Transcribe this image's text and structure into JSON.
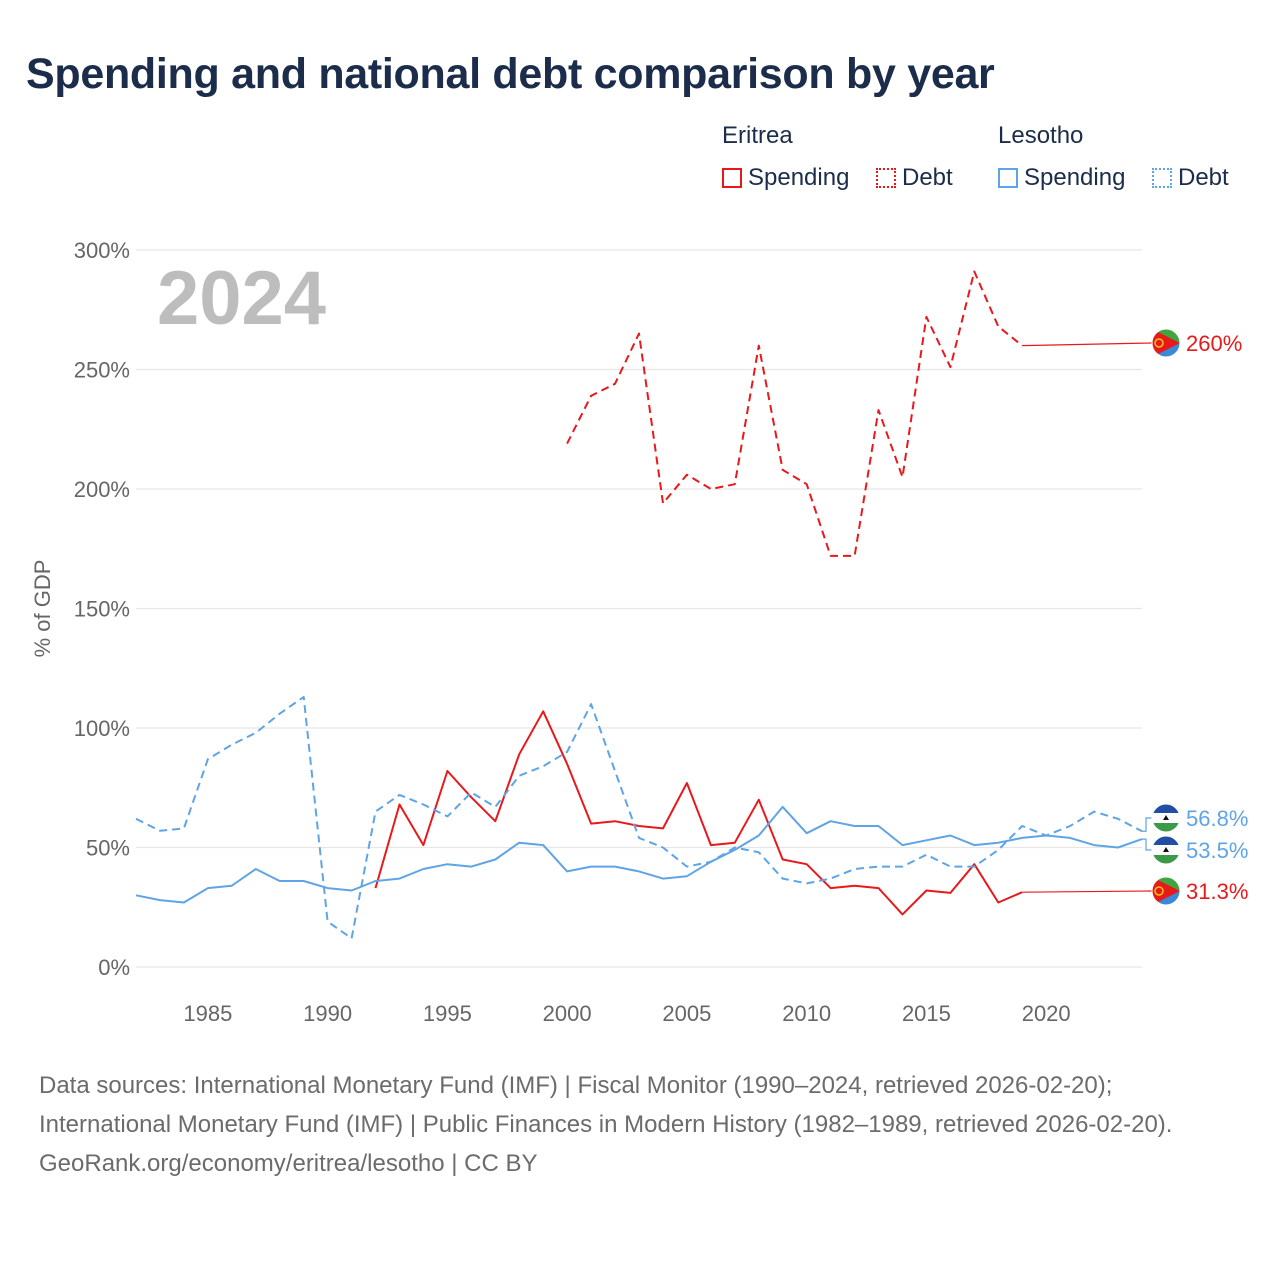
{
  "title": "Spending and national debt comparison by year",
  "year_watermark": "2024",
  "legend": {
    "groups": [
      {
        "title": "Eritrea",
        "spending_label": "Spending",
        "debt_label": "Debt"
      },
      {
        "title": "Lesotho",
        "spending_label": "Spending",
        "debt_label": "Debt"
      }
    ]
  },
  "colors": {
    "eritrea": "#e8191b",
    "lesotho": "#5ea4e6",
    "grid": "#e6e6e6",
    "axis_text": "#666666"
  },
  "chart_data": {
    "type": "line",
    "title": "Spending and national debt comparison by year",
    "xlabel": "",
    "ylabel": "% of GDP",
    "xlim": [
      1982,
      2024
    ],
    "ylim": [
      0,
      300
    ],
    "x_ticks": [
      1985,
      1990,
      1995,
      2000,
      2005,
      2010,
      2015,
      2020
    ],
    "y_ticks": [
      0,
      50,
      100,
      150,
      200,
      250,
      300
    ],
    "y_tick_labels": [
      "0%",
      "50%",
      "100%",
      "150%",
      "200%",
      "250%",
      "300%"
    ],
    "grid": true,
    "series": [
      {
        "name": "Eritrea Spending",
        "country": "Eritrea",
        "metric": "Spending",
        "color": "#e8191b",
        "dashed": false,
        "x": [
          1992,
          1993,
          1994,
          1995,
          1996,
          1997,
          1998,
          1999,
          2000,
          2001,
          2002,
          2003,
          2004,
          2005,
          2006,
          2007,
          2008,
          2009,
          2010,
          2011,
          2012,
          2013,
          2014,
          2015,
          2016,
          2017,
          2018,
          2019
        ],
        "values": [
          33,
          68,
          51,
          82,
          71,
          61,
          89,
          107,
          85,
          60,
          61,
          59,
          58,
          77,
          51,
          52,
          70,
          45,
          43,
          33,
          34,
          33,
          22,
          32,
          31,
          43,
          27,
          31.3
        ],
        "end_label": "31.3%"
      },
      {
        "name": "Eritrea Debt",
        "country": "Eritrea",
        "metric": "Debt",
        "color": "#e8191b",
        "dashed": true,
        "x": [
          2000,
          2001,
          2002,
          2003,
          2004,
          2005,
          2006,
          2007,
          2008,
          2009,
          2010,
          2011,
          2012,
          2013,
          2014,
          2015,
          2016,
          2017,
          2018,
          2019
        ],
        "values": [
          219,
          239,
          244,
          265,
          194,
          206,
          200,
          202,
          260,
          208,
          202,
          172,
          172,
          233,
          205,
          272,
          251,
          291,
          268,
          260
        ],
        "end_label": "260%"
      },
      {
        "name": "Lesotho Spending",
        "country": "Lesotho",
        "metric": "Spending",
        "color": "#5ea4e6",
        "dashed": false,
        "x": [
          1982,
          1983,
          1984,
          1985,
          1986,
          1987,
          1988,
          1989,
          1990,
          1991,
          1992,
          1993,
          1994,
          1995,
          1996,
          1997,
          1998,
          1999,
          2000,
          2001,
          2002,
          2003,
          2004,
          2005,
          2006,
          2007,
          2008,
          2009,
          2010,
          2011,
          2012,
          2013,
          2014,
          2015,
          2016,
          2017,
          2018,
          2019,
          2020,
          2021,
          2022,
          2023,
          2024
        ],
        "values": [
          30,
          28,
          27,
          33,
          34,
          41,
          36,
          36,
          33,
          32,
          36,
          37,
          41,
          43,
          42,
          45,
          52,
          51,
          40,
          42,
          42,
          40,
          37,
          38,
          44,
          49,
          55,
          67,
          56,
          61,
          59,
          59,
          51,
          53,
          55,
          51,
          52,
          54,
          55,
          54,
          51,
          50,
          53.5
        ],
        "end_label": "53.5%"
      },
      {
        "name": "Lesotho Debt",
        "country": "Lesotho",
        "metric": "Debt",
        "color": "#5ea4e6",
        "dashed": true,
        "x": [
          1982,
          1983,
          1984,
          1985,
          1986,
          1987,
          1988,
          1989,
          1990,
          1991,
          1992,
          1993,
          1994,
          1995,
          1996,
          1997,
          1998,
          1999,
          2000,
          2001,
          2002,
          2003,
          2004,
          2005,
          2006,
          2007,
          2008,
          2009,
          2010,
          2011,
          2012,
          2013,
          2014,
          2015,
          2016,
          2017,
          2018,
          2019,
          2020,
          2021,
          2022,
          2023,
          2024
        ],
        "values": [
          62,
          57,
          58,
          87,
          93,
          98,
          106,
          113,
          19,
          12,
          65,
          72,
          68,
          63,
          73,
          67,
          80,
          84,
          90,
          110,
          82,
          54,
          50,
          42,
          44,
          50,
          48,
          37,
          35,
          37,
          41,
          42,
          42,
          47,
          42,
          42,
          49,
          59,
          55,
          59,
          65,
          62,
          56.8
        ],
        "end_label": "56.8%"
      }
    ]
  },
  "footer": {
    "sources": "Data sources: International Monetary Fund (IMF) | Fiscal Monitor (1990–2024, retrieved 2026-02-20); International Monetary Fund (IMF) | Public Finances in Modern History (1982–1989, retrieved 2026-02-20).",
    "attribution": "GeoRank.org/economy/eritrea/lesotho | CC BY"
  }
}
